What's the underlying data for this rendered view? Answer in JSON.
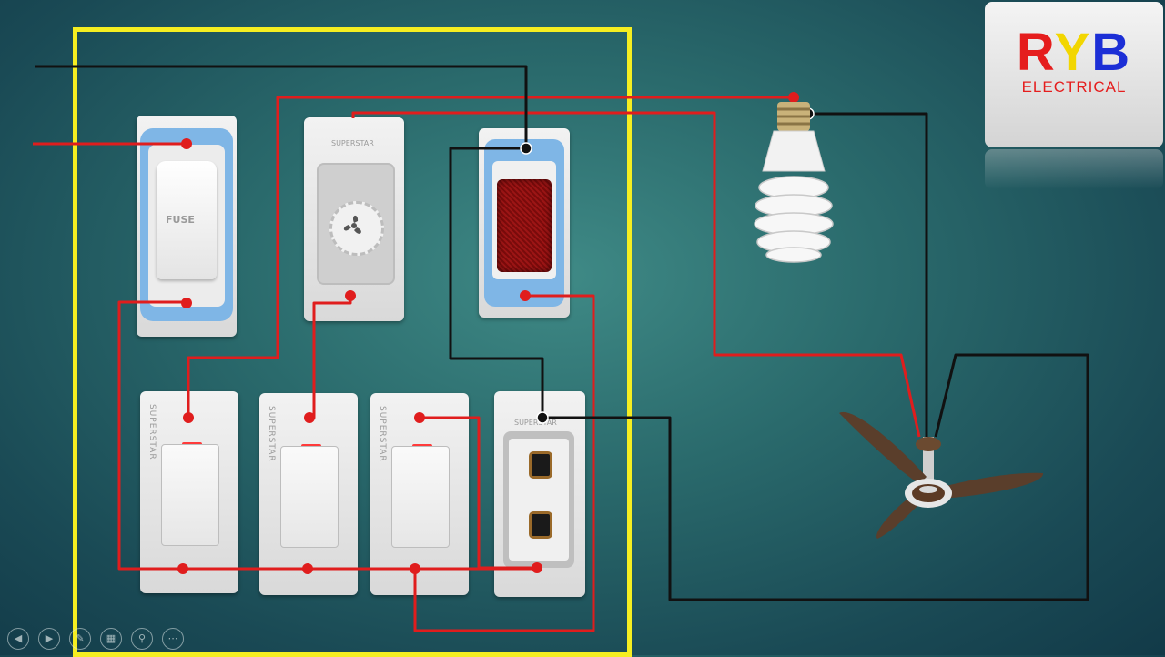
{
  "logo": {
    "r": "R",
    "y": "Y",
    "b": "B",
    "subtitle": "ELECTRICAL",
    "colors": {
      "r": "#e51d1d",
      "y": "#f2d600",
      "b": "#1c2fd6"
    }
  },
  "board": {
    "fuse": {
      "label": "FUSE"
    },
    "brand": "SUPERSTAR",
    "regulator_icon": "fan-icon",
    "indicator_color": "#8a0d0d"
  },
  "wire_colors": {
    "phase": "#e01d1d",
    "neutral": "#111111",
    "enclosure": "#f5ee21"
  },
  "loads": {
    "bulb_icon": "cfl-bulb-icon",
    "fan_icon": "ceiling-fan-icon"
  },
  "player_controls": [
    "previous-icon",
    "next-icon",
    "pen-icon",
    "slides-icon",
    "zoom-icon",
    "more-icon"
  ]
}
